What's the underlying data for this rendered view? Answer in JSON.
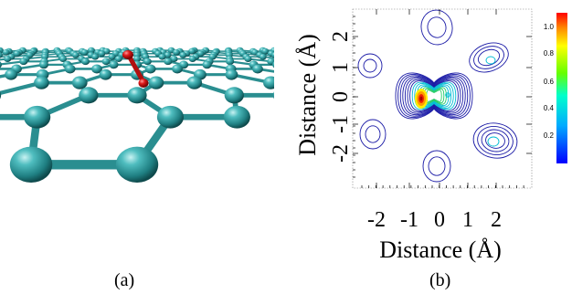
{
  "captions": {
    "a": "(a)",
    "b": "(b)"
  },
  "panel_b": {
    "xlabel": "Distance (Å)",
    "ylabel": "Distance (Å)",
    "x_ticks": [
      "-2",
      "-1",
      "0",
      "1",
      "2"
    ],
    "y_ticks": [
      "2",
      "1",
      "0",
      "-1",
      "-2"
    ],
    "colorbar_ticks": [
      "1.0",
      "0.8",
      "0.6",
      "0.4",
      "0.2"
    ],
    "colors": {
      "contour_low": "#1a1aa6",
      "contour_mid": "#00bcd4",
      "contour_high": "#ffcc00",
      "peak": "#d40000"
    }
  },
  "panel_a": {
    "colors": {
      "carbon": "#2a9a9c",
      "oxygen": "#cc1111"
    }
  }
}
